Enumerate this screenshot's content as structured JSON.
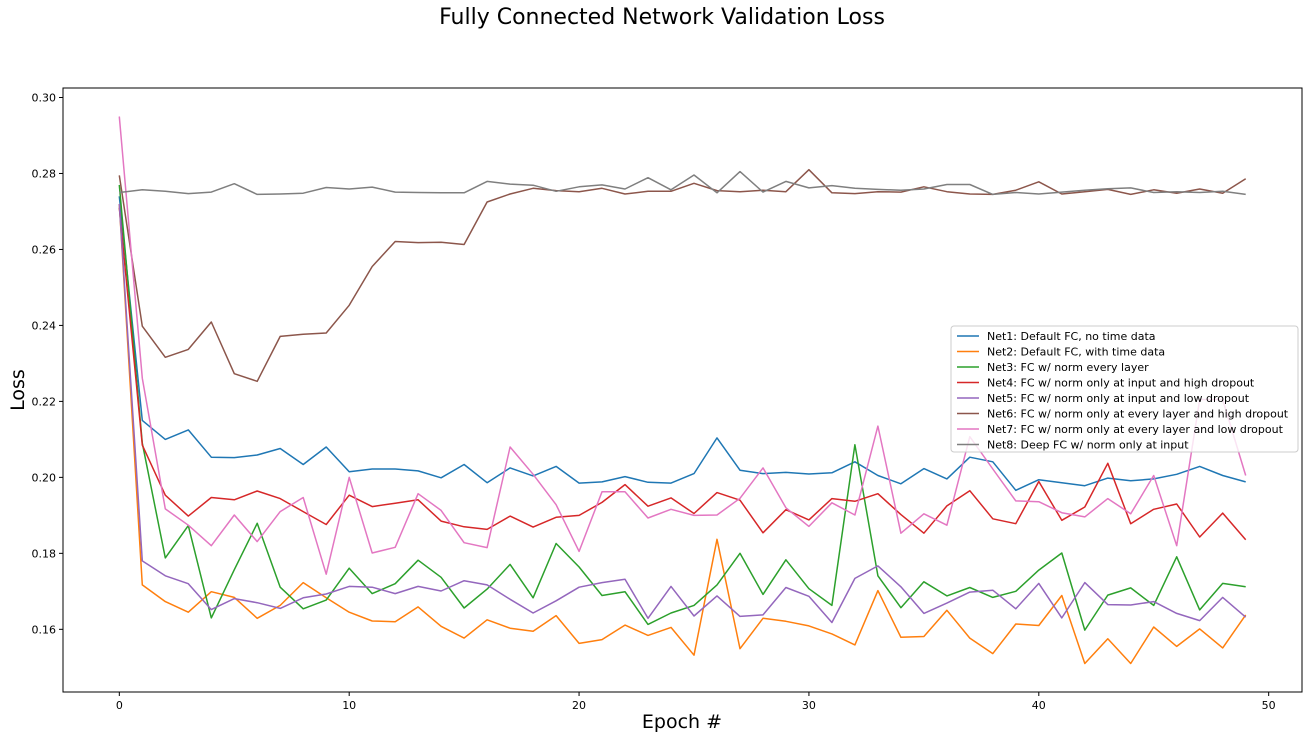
{
  "chart_data": {
    "type": "line",
    "title": "Fully Connected Network Validation Loss",
    "xlabel": "Epoch #",
    "ylabel": "Loss",
    "xlim": [
      -2.45,
      51.45
    ],
    "ylim": [
      0.1435,
      0.3025
    ],
    "xticks": [
      0,
      10,
      20,
      30,
      40,
      50
    ],
    "yticks": [
      0.16,
      0.18,
      0.2,
      0.22,
      0.24,
      0.26,
      0.28,
      0.3
    ],
    "ytick_labels": [
      "0.16",
      "0.18",
      "0.20",
      "0.22",
      "0.24",
      "0.26",
      "0.28",
      "0.30"
    ],
    "grid": false,
    "legend_position": "center-right",
    "x": [
      0,
      1,
      2,
      3,
      4,
      5,
      6,
      7,
      8,
      9,
      10,
      11,
      12,
      13,
      14,
      15,
      16,
      17,
      18,
      19,
      20,
      21,
      22,
      23,
      24,
      25,
      26,
      27,
      28,
      29,
      30,
      31,
      32,
      33,
      34,
      35,
      36,
      37,
      38,
      39,
      40,
      41,
      42,
      43,
      44,
      45,
      46,
      47,
      48,
      49
    ],
    "series": [
      {
        "name": "Net1: Default FC, no time data",
        "color": "#1f77b4",
        "values": [
          0.274,
          0.215,
          0.21,
          0.2125,
          0.2053,
          0.2052,
          0.2059,
          0.2076,
          0.2034,
          0.208,
          0.2015,
          0.2022,
          0.2022,
          0.2017,
          0.1999,
          0.2034,
          0.1986,
          0.2025,
          0.2004,
          0.2029,
          0.1985,
          0.1988,
          0.2002,
          0.1987,
          0.1985,
          0.201,
          0.2104,
          0.2019,
          0.201,
          0.2013,
          0.2009,
          0.2012,
          0.2041,
          0.2005,
          0.1983,
          0.2023,
          0.1996,
          0.2053,
          0.2041,
          0.1966,
          0.1994,
          0.1986,
          0.1978,
          0.1998,
          0.1991,
          0.1996,
          0.2008,
          0.2029,
          0.2005,
          0.1988
        ]
      },
      {
        "name": "Net2: Default FC, with time data",
        "color": "#ff7f0e",
        "values": [
          0.272,
          0.1717,
          0.1673,
          0.1645,
          0.1699,
          0.1684,
          0.1629,
          0.1663,
          0.1723,
          0.1683,
          0.1645,
          0.1622,
          0.162,
          0.1659,
          0.1608,
          0.1577,
          0.1625,
          0.1603,
          0.1595,
          0.1636,
          0.1563,
          0.1573,
          0.1611,
          0.1584,
          0.1605,
          0.1532,
          0.1837,
          0.1549,
          0.1629,
          0.1621,
          0.1609,
          0.1588,
          0.1559,
          0.1702,
          0.1579,
          0.1581,
          0.165,
          0.1577,
          0.1536,
          0.1614,
          0.161,
          0.1689,
          0.151,
          0.1575,
          0.151,
          0.1606,
          0.1555,
          0.1601,
          0.1551,
          0.1638
        ]
      },
      {
        "name": "Net3: FC w/ norm every layer",
        "color": "#2ca02c",
        "values": [
          0.277,
          0.209,
          0.1788,
          0.1873,
          0.163,
          0.1757,
          0.1879,
          0.1711,
          0.1654,
          0.1677,
          0.1761,
          0.1694,
          0.172,
          0.1782,
          0.1737,
          0.1656,
          0.1706,
          0.1771,
          0.1683,
          0.1826,
          0.1764,
          0.1689,
          0.1699,
          0.1613,
          0.1643,
          0.1663,
          0.1717,
          0.18,
          0.1692,
          0.1783,
          0.1707,
          0.1663,
          0.2086,
          0.1741,
          0.1657,
          0.1725,
          0.1688,
          0.171,
          0.1684,
          0.17,
          0.1756,
          0.1801,
          0.1598,
          0.169,
          0.1709,
          0.1663,
          0.1791,
          0.1651,
          0.1721,
          0.1712
        ]
      },
      {
        "name": "Net4: FC w/ norm only at input and high dropout",
        "color": "#d62728",
        "values": [
          0.271,
          0.2085,
          0.1953,
          0.1898,
          0.1947,
          0.1941,
          0.1964,
          0.1944,
          0.191,
          0.1876,
          0.1953,
          0.1923,
          0.1932,
          0.1941,
          0.1885,
          0.187,
          0.1863,
          0.1898,
          0.1869,
          0.1895,
          0.19,
          0.1934,
          0.1981,
          0.1924,
          0.1946,
          0.1905,
          0.196,
          0.194,
          0.1854,
          0.1915,
          0.1888,
          0.1944,
          0.1937,
          0.1957,
          0.1902,
          0.1853,
          0.1925,
          0.1965,
          0.1891,
          0.1878,
          0.1989,
          0.1887,
          0.1922,
          0.2037,
          0.1878,
          0.1916,
          0.193,
          0.1843,
          0.1906,
          0.1836
        ]
      },
      {
        "name": "Net5: FC w/ norm only at input and low dropout",
        "color": "#9467bd",
        "values": [
          0.272,
          0.178,
          0.1741,
          0.172,
          0.1652,
          0.1681,
          0.167,
          0.1655,
          0.1683,
          0.1693,
          0.1713,
          0.1711,
          0.1694,
          0.1713,
          0.1701,
          0.1728,
          0.1717,
          0.1679,
          0.1643,
          0.1675,
          0.1711,
          0.1723,
          0.1732,
          0.1629,
          0.1713,
          0.1635,
          0.1688,
          0.1634,
          0.1638,
          0.171,
          0.1687,
          0.1618,
          0.1734,
          0.1767,
          0.1712,
          0.1642,
          0.1669,
          0.1698,
          0.1703,
          0.1654,
          0.1721,
          0.163,
          0.1723,
          0.1665,
          0.1664,
          0.1673,
          0.1642,
          0.1623,
          0.1684,
          0.1632
        ]
      },
      {
        "name": "Net6: FC w/ norm only at every layer and high dropout",
        "color": "#8c564b",
        "values": [
          0.2795,
          0.2398,
          0.2316,
          0.2337,
          0.2409,
          0.2273,
          0.2253,
          0.2371,
          0.2377,
          0.238,
          0.2453,
          0.2555,
          0.2621,
          0.2618,
          0.2619,
          0.2613,
          0.2725,
          0.2746,
          0.2761,
          0.2755,
          0.2752,
          0.2761,
          0.2746,
          0.2753,
          0.2753,
          0.2774,
          0.2755,
          0.2752,
          0.2756,
          0.2752,
          0.281,
          0.2749,
          0.2747,
          0.2752,
          0.2751,
          0.2765,
          0.2752,
          0.2746,
          0.2745,
          0.2756,
          0.2778,
          0.2746,
          0.2752,
          0.2758,
          0.2745,
          0.2757,
          0.2748,
          0.2759,
          0.2748,
          0.2786
        ]
      },
      {
        "name": "Net7: FC w/ norm only at every layer and low dropout",
        "color": "#e377c2",
        "values": [
          0.295,
          0.2261,
          0.1917,
          0.1874,
          0.182,
          0.1901,
          0.1831,
          0.191,
          0.1947,
          0.1745,
          0.2,
          0.1801,
          0.1816,
          0.1957,
          0.1913,
          0.1828,
          0.1815,
          0.208,
          0.2008,
          0.1928,
          0.1805,
          0.1962,
          0.1962,
          0.1893,
          0.1916,
          0.19,
          0.1901,
          0.1945,
          0.2025,
          0.192,
          0.1871,
          0.1933,
          0.1901,
          0.2135,
          0.1853,
          0.1904,
          0.1874,
          0.2107,
          0.2022,
          0.1938,
          0.1936,
          0.1907,
          0.1896,
          0.1944,
          0.1904,
          0.2005,
          0.182,
          0.2205,
          0.2205,
          0.2005
        ]
      },
      {
        "name": "Net8: Deep FC w/ norm only at input",
        "color": "#7f7f7f",
        "values": [
          0.275,
          0.2757,
          0.2753,
          0.2747,
          0.2751,
          0.2773,
          0.2745,
          0.2746,
          0.2748,
          0.2763,
          0.2759,
          0.2764,
          0.2751,
          0.275,
          0.2749,
          0.2749,
          0.2779,
          0.2772,
          0.2769,
          0.2753,
          0.2765,
          0.277,
          0.2759,
          0.2789,
          0.2757,
          0.2796,
          0.2749,
          0.2805,
          0.2751,
          0.2779,
          0.2762,
          0.2768,
          0.2761,
          0.2758,
          0.2756,
          0.2759,
          0.2771,
          0.2771,
          0.2745,
          0.275,
          0.2746,
          0.2751,
          0.2756,
          0.276,
          0.2762,
          0.275,
          0.2752,
          0.275,
          0.2753,
          0.2745
        ]
      }
    ]
  }
}
